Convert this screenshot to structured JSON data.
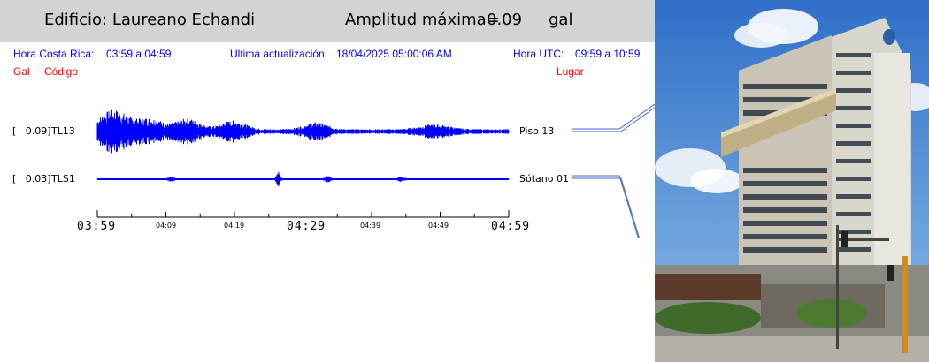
{
  "header": {
    "building_label": "Edificio: Laureano Echandi",
    "amplitude_label": "Amplitud máxima=",
    "amplitude_value": "0.09",
    "amplitude_unit": "gal"
  },
  "info": {
    "cr_time_label": "Hora Costa Rica:",
    "cr_time_value": "03:59 a 04:59",
    "update_label": "Ultima actualización:",
    "update_value": "18/04/2025 05:00:06 AM",
    "utc_label": "Hora UTC:",
    "utc_value": "09:59 a 10:59"
  },
  "columns": {
    "gal": "Gal",
    "code": "Código",
    "place": "Lugar"
  },
  "channels": [
    {
      "gal": "[   0.09]",
      "code": "TL13",
      "location": "Piso 13",
      "amplitude": 0.09
    },
    {
      "gal": "[   0.03]",
      "code": "TLS1",
      "location": "Sótano 01",
      "amplitude": 0.03
    }
  ],
  "axis": {
    "major_labels": [
      "03:59",
      "04:29",
      "04:59"
    ],
    "minor_labels": [
      "04:09",
      "04:19",
      "04:39",
      "04:49"
    ]
  },
  "colors": {
    "trace": "#0000ff",
    "header_bg": "#d3d3d3",
    "info_text": "#0000ff",
    "column_text": "#ff0000"
  },
  "photo": {
    "icon": "building-photo"
  }
}
